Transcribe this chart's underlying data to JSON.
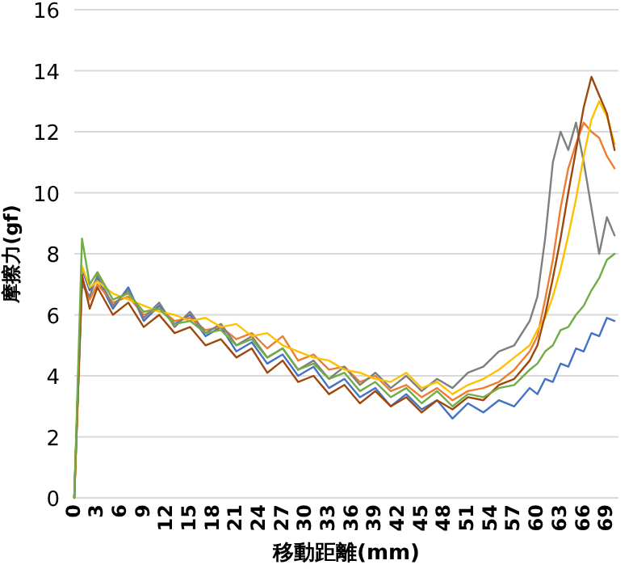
{
  "chart_data": {
    "type": "line",
    "xlabel": "移動距離(mm)",
    "ylabel": "摩擦力(gf)",
    "x": [
      0,
      1,
      2,
      3,
      5,
      7,
      9,
      11,
      13,
      15,
      17,
      19,
      21,
      23,
      25,
      27,
      29,
      31,
      33,
      35,
      37,
      39,
      41,
      43,
      45,
      47,
      49,
      51,
      53,
      55,
      57,
      59,
      60,
      61,
      62,
      63,
      64,
      65,
      66,
      67,
      68,
      69,
      70
    ],
    "series": [
      {
        "color": "#4472c4",
        "values": [
          0,
          7.5,
          6.8,
          7.2,
          6.2,
          6.9,
          5.8,
          6.3,
          5.7,
          6.0,
          5.3,
          5.6,
          4.8,
          5.1,
          4.4,
          4.7,
          4.0,
          4.3,
          3.6,
          3.9,
          3.3,
          3.6,
          3.0,
          3.4,
          2.9,
          3.2,
          2.6,
          3.1,
          2.8,
          3.2,
          3.0,
          3.6,
          3.4,
          3.9,
          3.8,
          4.4,
          4.3,
          4.9,
          4.8,
          5.4,
          5.3,
          5.9,
          5.8
        ]
      },
      {
        "color": "#ed7d31",
        "values": [
          0,
          7.2,
          6.5,
          7.0,
          6.4,
          6.6,
          6.0,
          6.2,
          5.8,
          5.9,
          5.5,
          5.6,
          5.2,
          5.4,
          4.9,
          5.3,
          4.5,
          4.7,
          4.2,
          4.3,
          3.8,
          4.0,
          3.5,
          3.7,
          3.3,
          3.6,
          3.2,
          3.5,
          3.6,
          3.8,
          4.2,
          4.8,
          5.3,
          6.5,
          7.8,
          9.5,
          10.8,
          11.6,
          12.3,
          12.0,
          11.8,
          11.2,
          10.8
        ]
      },
      {
        "color": "#7f7f7f",
        "values": [
          0,
          7.0,
          6.6,
          7.3,
          6.3,
          6.8,
          5.9,
          6.4,
          5.6,
          6.1,
          5.4,
          5.7,
          5.0,
          5.3,
          4.6,
          4.9,
          4.2,
          4.5,
          3.9,
          4.3,
          3.7,
          4.1,
          3.6,
          4.0,
          3.5,
          3.9,
          3.6,
          4.1,
          4.3,
          4.8,
          5.0,
          5.8,
          6.6,
          8.5,
          11.0,
          12.0,
          11.4,
          12.3,
          11.0,
          9.5,
          8.0,
          9.2,
          8.6
        ]
      },
      {
        "color": "#ffc000",
        "values": [
          0,
          7.6,
          6.9,
          7.1,
          6.7,
          6.5,
          6.3,
          6.1,
          6.0,
          5.8,
          5.9,
          5.6,
          5.7,
          5.3,
          5.4,
          5.0,
          4.8,
          4.6,
          4.5,
          4.2,
          4.1,
          3.9,
          3.8,
          4.1,
          3.6,
          3.8,
          3.4,
          3.7,
          3.9,
          4.2,
          4.6,
          5.0,
          5.5,
          5.9,
          6.6,
          7.5,
          8.6,
          9.8,
          11.2,
          12.4,
          13.0,
          12.5,
          11.6
        ]
      },
      {
        "color": "#9e480e",
        "values": [
          0,
          7.3,
          6.2,
          6.9,
          6.0,
          6.4,
          5.6,
          6.0,
          5.4,
          5.6,
          5.0,
          5.2,
          4.6,
          4.9,
          4.1,
          4.5,
          3.8,
          4.0,
          3.4,
          3.7,
          3.1,
          3.5,
          3.0,
          3.3,
          2.8,
          3.2,
          2.9,
          3.3,
          3.2,
          3.7,
          3.9,
          4.5,
          5.0,
          6.0,
          7.2,
          8.5,
          10.0,
          11.4,
          12.8,
          13.8,
          13.2,
          12.6,
          11.4
        ]
      },
      {
        "color": "#70ad47",
        "values": [
          0,
          8.5,
          7.0,
          7.4,
          6.5,
          6.7,
          6.1,
          6.2,
          5.7,
          5.8,
          5.4,
          5.5,
          5.0,
          5.2,
          4.6,
          4.9,
          4.2,
          4.4,
          3.9,
          4.1,
          3.5,
          3.8,
          3.3,
          3.6,
          3.1,
          3.5,
          3.0,
          3.4,
          3.3,
          3.6,
          3.7,
          4.2,
          4.4,
          4.8,
          5.0,
          5.5,
          5.6,
          6.0,
          6.3,
          6.8,
          7.2,
          7.8,
          8.0
        ]
      }
    ],
    "xlim": [
      0,
      70.5
    ],
    "ylim": [
      0,
      16
    ],
    "xticks": [
      0,
      3,
      6,
      9,
      12,
      15,
      18,
      21,
      24,
      27,
      30,
      33,
      36,
      39,
      42,
      45,
      48,
      51,
      54,
      57,
      60,
      63,
      66,
      69
    ],
    "yticks": [
      0,
      2,
      4,
      6,
      8,
      10,
      12,
      14,
      16
    ],
    "grid": "y",
    "line_style": "solid"
  }
}
